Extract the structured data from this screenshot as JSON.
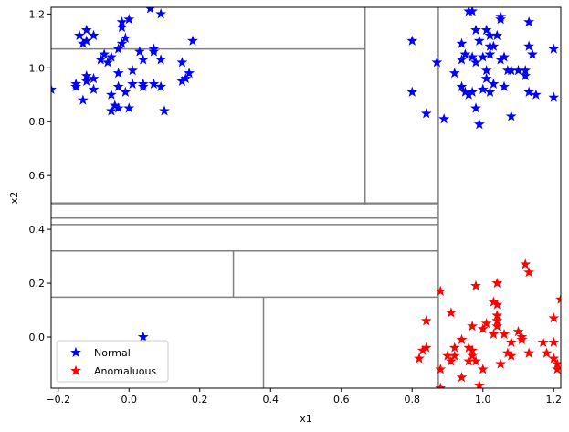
{
  "chart_data": {
    "type": "scatter",
    "title": "",
    "xlabel": "x1",
    "ylabel": "x2",
    "xlim": [
      -0.22,
      1.22
    ],
    "ylim": [
      -0.19,
      1.225
    ],
    "xticks": [
      -0.2,
      0.0,
      0.2,
      0.4,
      0.6,
      0.8,
      1.0,
      1.2
    ],
    "yticks": [
      0.0,
      0.2,
      0.4,
      0.6,
      0.8,
      1.0,
      1.2
    ],
    "xtick_labels": [
      "−0.2",
      "0.0",
      "0.2",
      "0.4",
      "0.6",
      "0.8",
      "1.0",
      "1.2"
    ],
    "ytick_labels": [
      "0.0",
      "0.2",
      "0.4",
      "0.6",
      "0.8",
      "1.0",
      "1.2"
    ],
    "grid": false,
    "legend_position": "lower-left",
    "series": [
      {
        "name": "Normal",
        "color": "#0000ff",
        "marker": "star",
        "points": [
          [
            -0.22,
            0.92
          ],
          [
            0.06,
            1.22
          ],
          [
            0.09,
            1.2
          ],
          [
            -0.02,
            1.17
          ],
          [
            0.0,
            1.18
          ],
          [
            -0.02,
            1.15
          ],
          [
            -0.12,
            1.14
          ],
          [
            -0.14,
            1.12
          ],
          [
            -0.1,
            1.12
          ],
          [
            -0.12,
            1.1
          ],
          [
            -0.01,
            1.11
          ],
          [
            -0.02,
            1.09
          ],
          [
            -0.13,
            1.09
          ],
          [
            0.18,
            1.1
          ],
          [
            0.03,
            1.06
          ],
          [
            0.07,
            1.06
          ],
          [
            0.07,
            1.07
          ],
          [
            -0.07,
            1.05
          ],
          [
            -0.03,
            1.07
          ],
          [
            -0.05,
            1.04
          ],
          [
            0.04,
            1.03
          ],
          [
            0.09,
            1.03
          ],
          [
            0.15,
            1.02
          ],
          [
            -0.08,
            1.03
          ],
          [
            -0.06,
            1.02
          ],
          [
            -0.03,
            0.98
          ],
          [
            0.01,
            0.99
          ],
          [
            0.17,
            0.98
          ],
          [
            -0.15,
            0.94
          ],
          [
            -0.12,
            0.97
          ],
          [
            -0.1,
            0.96
          ],
          [
            -0.15,
            0.93
          ],
          [
            -0.12,
            0.95
          ],
          [
            -0.1,
            0.92
          ],
          [
            0.01,
            0.94
          ],
          [
            -0.03,
            0.93
          ],
          [
            0.04,
            0.94
          ],
          [
            0.04,
            0.93
          ],
          [
            0.07,
            0.94
          ],
          [
            0.09,
            0.93
          ],
          [
            0.15,
            0.95
          ],
          [
            0.16,
            0.96
          ],
          [
            -0.13,
            0.88
          ],
          [
            -0.05,
            0.9
          ],
          [
            -0.01,
            0.91
          ],
          [
            -0.04,
            0.86
          ],
          [
            -0.05,
            0.84
          ],
          [
            -0.03,
            0.85
          ],
          [
            0.0,
            0.85
          ],
          [
            0.1,
            0.84
          ],
          [
            0.04,
            0.0
          ]
        ]
      },
      {
        "name": "Normal",
        "color": "#0000ff",
        "marker": "star",
        "points": [
          [
            0.96,
            1.21
          ],
          [
            0.97,
            1.21
          ],
          [
            1.05,
            1.19
          ],
          [
            1.05,
            1.18
          ],
          [
            1.13,
            1.17
          ],
          [
            0.98,
            1.14
          ],
          [
            1.01,
            1.14
          ],
          [
            1.02,
            1.12
          ],
          [
            1.04,
            1.12
          ],
          [
            0.8,
            1.1
          ],
          [
            0.94,
            1.09
          ],
          [
            0.99,
            1.1
          ],
          [
            1.02,
            1.08
          ],
          [
            1.03,
            1.08
          ],
          [
            1.13,
            1.08
          ],
          [
            1.2,
            1.07
          ],
          [
            0.95,
            1.05
          ],
          [
            0.97,
            1.04
          ],
          [
            1.02,
            1.05
          ],
          [
            1.05,
            1.03
          ],
          [
            1.06,
            1.04
          ],
          [
            1.14,
            1.05
          ],
          [
            0.87,
            1.02
          ],
          [
            0.94,
            1.03
          ],
          [
            0.98,
            1.02
          ],
          [
            1.0,
            1.04
          ],
          [
            0.92,
            0.98
          ],
          [
            1.01,
            0.99
          ],
          [
            1.07,
            0.99
          ],
          [
            1.08,
            0.99
          ],
          [
            1.1,
            0.99
          ],
          [
            1.12,
            0.97
          ],
          [
            1.12,
            0.99
          ],
          [
            1.01,
            0.96
          ],
          [
            1.03,
            0.94
          ],
          [
            0.94,
            0.93
          ],
          [
            0.95,
            0.91
          ],
          [
            0.96,
            0.9
          ],
          [
            0.97,
            0.91
          ],
          [
            1.0,
            0.92
          ],
          [
            1.02,
            0.91
          ],
          [
            1.06,
            0.93
          ],
          [
            1.13,
            0.91
          ],
          [
            1.15,
            0.9
          ],
          [
            1.2,
            0.89
          ],
          [
            0.8,
            0.91
          ],
          [
            0.84,
            0.83
          ],
          [
            0.89,
            0.81
          ],
          [
            0.98,
            0.85
          ],
          [
            0.99,
            0.79
          ],
          [
            1.08,
            0.82
          ]
        ]
      },
      {
        "name": "Anomaluous",
        "color": "#ff0000",
        "marker": "star",
        "points": [
          [
            1.12,
            0.27
          ],
          [
            1.13,
            0.24
          ],
          [
            1.04,
            0.2
          ],
          [
            0.98,
            0.19
          ],
          [
            0.88,
            0.17
          ],
          [
            1.22,
            0.14
          ],
          [
            1.03,
            0.13
          ],
          [
            1.04,
            0.12
          ],
          [
            0.91,
            0.09
          ],
          [
            1.04,
            0.08
          ],
          [
            1.2,
            0.07
          ],
          [
            0.84,
            0.06
          ],
          [
            1.01,
            0.05
          ],
          [
            1.04,
            0.06
          ],
          [
            0.97,
            0.04
          ],
          [
            1.0,
            0.03
          ],
          [
            1.04,
            0.04
          ],
          [
            1.1,
            0.02
          ],
          [
            1.03,
            0.01
          ],
          [
            1.06,
            0.01
          ],
          [
            0.94,
            -0.01
          ],
          [
            1.11,
            0.0
          ],
          [
            1.08,
            -0.02
          ],
          [
            1.11,
            -0.01
          ],
          [
            1.17,
            -0.02
          ],
          [
            1.2,
            -0.02
          ],
          [
            0.92,
            -0.04
          ],
          [
            0.96,
            -0.04
          ],
          [
            0.83,
            -0.05
          ],
          [
            0.84,
            -0.04
          ],
          [
            0.97,
            -0.05
          ],
          [
            1.07,
            -0.06
          ],
          [
            1.13,
            -0.06
          ],
          [
            1.18,
            -0.06
          ],
          [
            0.9,
            -0.07
          ],
          [
            0.92,
            -0.07
          ],
          [
            0.97,
            -0.07
          ],
          [
            1.08,
            -0.07
          ],
          [
            1.2,
            -0.08
          ],
          [
            0.82,
            -0.08
          ],
          [
            0.91,
            -0.09
          ],
          [
            0.96,
            -0.09
          ],
          [
            0.98,
            -0.09
          ],
          [
            1.05,
            -0.1
          ],
          [
            1.21,
            -0.1
          ],
          [
            0.88,
            -0.12
          ],
          [
            1.0,
            -0.12
          ],
          [
            1.21,
            -0.12
          ],
          [
            0.94,
            -0.15
          ],
          [
            0.88,
            -0.19
          ],
          [
            0.99,
            -0.18
          ]
        ]
      }
    ],
    "partitions": [
      {
        "orient": "v",
        "at": 0.874,
        "from": -0.19,
        "to": 1.225
      },
      {
        "orient": "v",
        "at": 0.667,
        "from": 0.493,
        "to": 1.225
      },
      {
        "orient": "h",
        "at": 1.07,
        "from": -0.22,
        "to": 0.667
      },
      {
        "orient": "h",
        "at": 0.498,
        "from": -0.22,
        "to": 0.874
      },
      {
        "orient": "h",
        "at": 0.492,
        "from": -0.22,
        "to": 0.874
      },
      {
        "orient": "h",
        "at": 0.442,
        "from": -0.22,
        "to": 0.874
      },
      {
        "orient": "h",
        "at": 0.418,
        "from": -0.22,
        "to": 0.874
      },
      {
        "orient": "h",
        "at": 0.32,
        "from": -0.22,
        "to": 0.874
      },
      {
        "orient": "v",
        "at": 0.295,
        "from": 0.148,
        "to": 0.32
      },
      {
        "orient": "h",
        "at": 0.148,
        "from": -0.22,
        "to": 0.874
      },
      {
        "orient": "v",
        "at": 0.38,
        "from": -0.19,
        "to": 0.148
      }
    ]
  },
  "legend": {
    "items": [
      {
        "label": "Normal",
        "color": "#0000ff"
      },
      {
        "label": "Anomaluous",
        "color": "#ff0000"
      }
    ]
  }
}
